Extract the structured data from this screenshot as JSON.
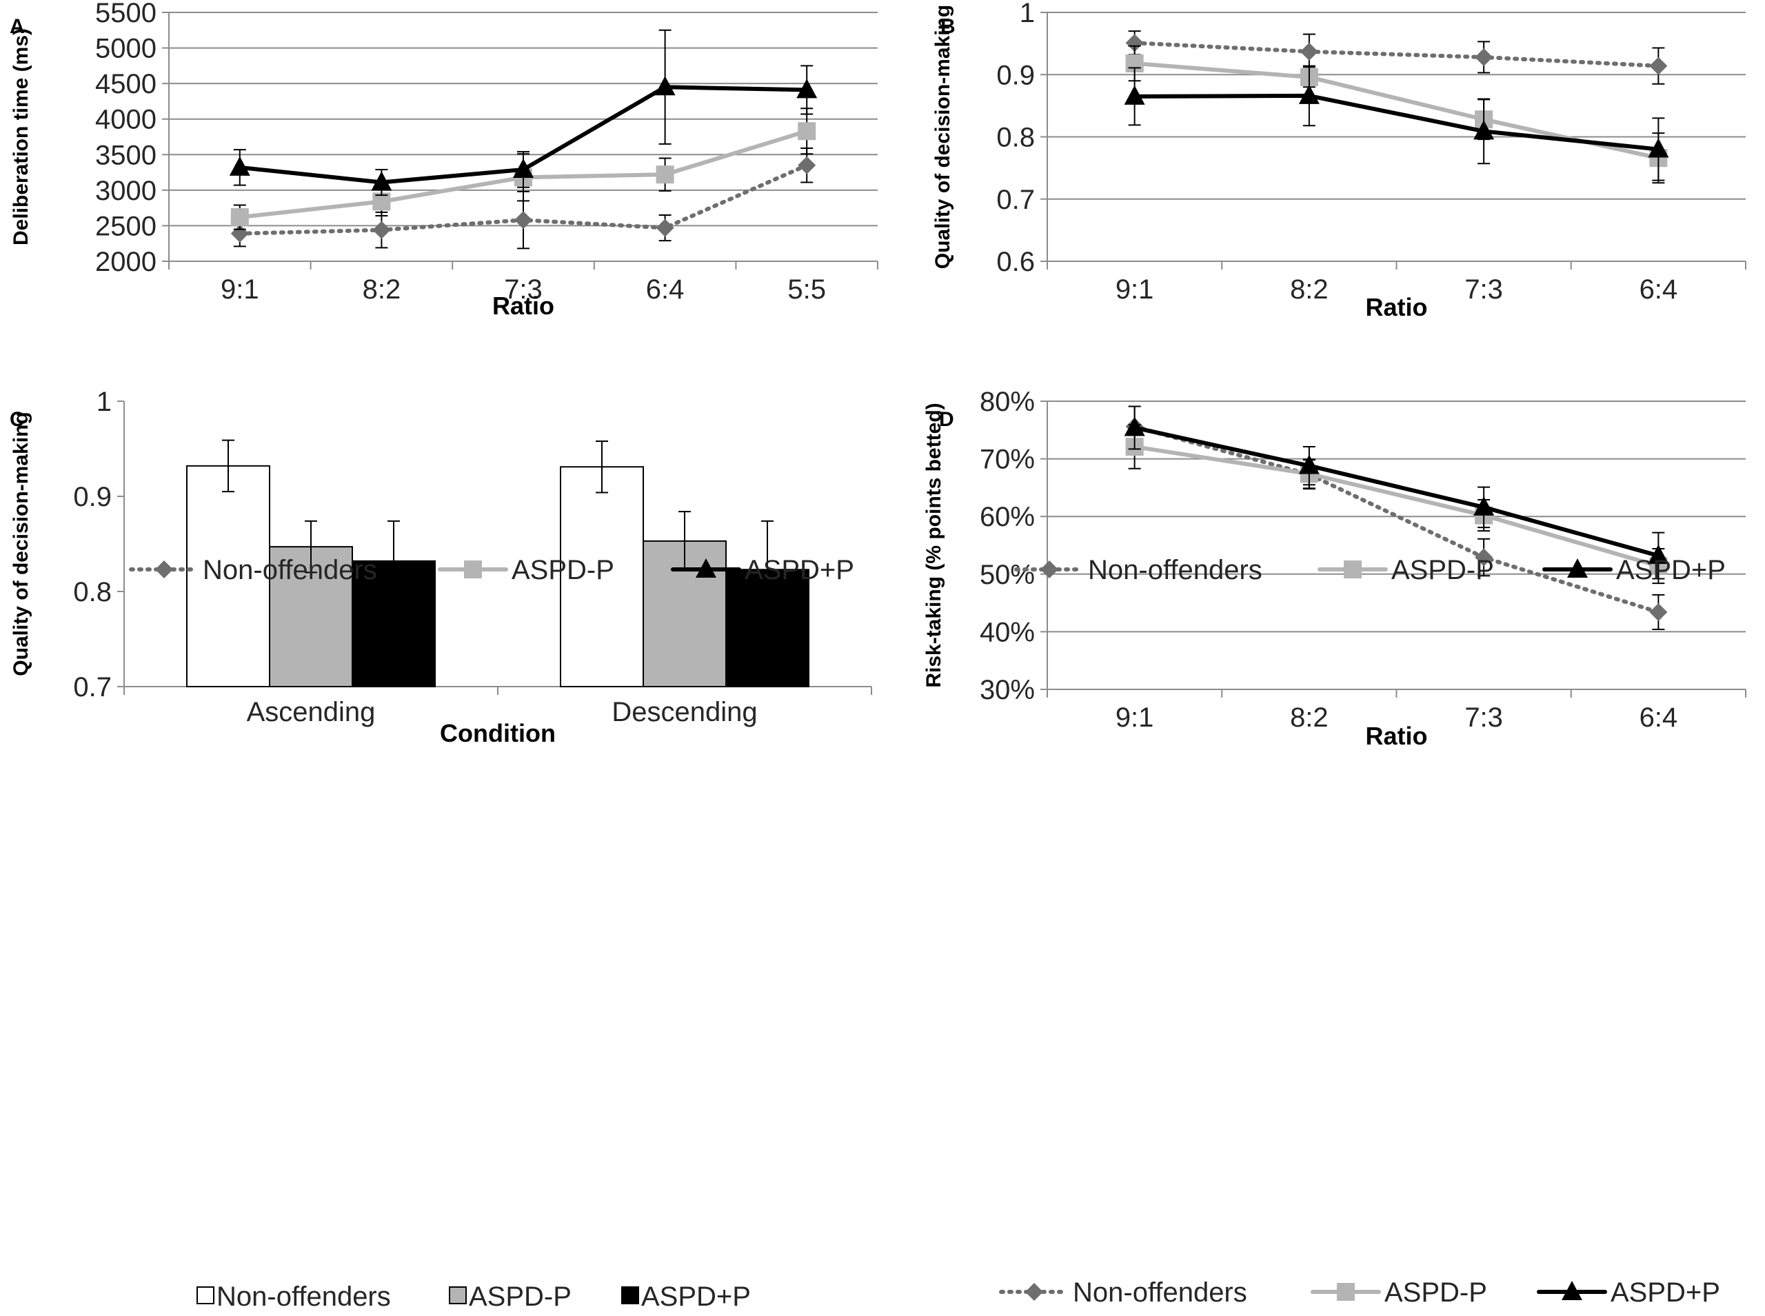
{
  "colors": {
    "non_offenders": "#6e6e6e",
    "aspd_minus_p": "#b4b4b4",
    "aspd_plus_p": "#000000",
    "grid": "#8c8c8c",
    "error_bar": "#000000"
  },
  "chart_data": [
    {
      "panel": "A",
      "type": "line",
      "xlabel": "Ratio",
      "ylabel": "Deliberation time (ms)",
      "categories": [
        "9:1",
        "8:2",
        "7:3",
        "6:4",
        "5:5"
      ],
      "ylim": [
        2000,
        5500
      ],
      "yticks": [
        2000,
        2500,
        3000,
        3500,
        4000,
        4500,
        5000,
        5500
      ],
      "ytick_labels": [
        "2000",
        "2500",
        "3000",
        "3500",
        "4000",
        "4500",
        "5000",
        "5500"
      ],
      "grid": true,
      "legend_position": "bottom",
      "series": [
        {
          "name": "Non-offenders",
          "marker": "diamond",
          "style": "dotted",
          "color": "#6e6e6e",
          "values": [
            2390,
            2440,
            2580,
            2470,
            3350
          ],
          "errors": [
            180,
            250,
            400,
            180,
            240
          ]
        },
        {
          "name": "ASPD-P",
          "marker": "square",
          "style": "solid",
          "color": "#b4b4b4",
          "values": [
            2620,
            2840,
            3180,
            3220,
            3830
          ],
          "errors": [
            170,
            200,
            330,
            230,
            320
          ]
        },
        {
          "name": "ASPD+P",
          "marker": "triangle",
          "style": "solid",
          "color": "#000000",
          "values": [
            3320,
            3110,
            3290,
            4450,
            4410
          ],
          "errors": [
            250,
            180,
            250,
            800,
            340
          ]
        }
      ]
    },
    {
      "panel": "B",
      "type": "line",
      "xlabel": "Ratio",
      "ylabel": "Quality of decision-making",
      "categories": [
        "9:1",
        "8:2",
        "7:3",
        "6:4"
      ],
      "ylim": [
        0.6,
        1.0
      ],
      "yticks": [
        0.6,
        0.7,
        0.8,
        0.9,
        1.0
      ],
      "ytick_labels": [
        "0.6",
        "0.7",
        "0.8",
        "0.9",
        "1"
      ],
      "grid": true,
      "legend_position": "bottom",
      "series": [
        {
          "name": "Non-offenders",
          "marker": "diamond",
          "style": "dotted",
          "color": "#6e6e6e",
          "values": [
            0.951,
            0.937,
            0.928,
            0.914
          ],
          "errors": [
            0.019,
            0.028,
            0.025,
            0.029
          ]
        },
        {
          "name": "ASPD-P",
          "marker": "square",
          "style": "solid",
          "color": "#b4b4b4",
          "values": [
            0.918,
            0.896,
            0.828,
            0.766
          ],
          "errors": [
            0.028,
            0.016,
            0.032,
            0.04
          ]
        },
        {
          "name": "ASPD+P",
          "marker": "triangle",
          "style": "solid",
          "color": "#000000",
          "values": [
            0.865,
            0.866,
            0.809,
            0.78
          ],
          "errors": [
            0.046,
            0.048,
            0.052,
            0.05
          ]
        }
      ]
    },
    {
      "panel": "C",
      "type": "bar",
      "xlabel": "Condition",
      "ylabel": "Quality of decision-making",
      "categories": [
        "Ascending",
        "Descending"
      ],
      "ylim": [
        0.7,
        1.0
      ],
      "yticks": [
        0.7,
        0.8,
        0.9,
        1.0
      ],
      "ytick_labels": [
        "0.7",
        "0.8",
        "0.9",
        "1"
      ],
      "grid": false,
      "legend_position": "bottom",
      "series": [
        {
          "name": "Non-offenders",
          "fill": "#ffffff",
          "values": [
            0.932,
            0.931
          ],
          "errors": [
            0.027,
            0.027
          ]
        },
        {
          "name": "ASPD-P",
          "fill": "#b4b4b4",
          "values": [
            0.847,
            0.853
          ],
          "errors": [
            0.027,
            0.031
          ]
        },
        {
          "name": "ASPD+P",
          "fill": "#000000",
          "values": [
            0.832,
            0.823
          ],
          "errors": [
            0.042,
            0.051
          ]
        }
      ]
    },
    {
      "panel": "D",
      "type": "line",
      "xlabel": "Ratio",
      "ylabel": "Risk-taking (% points betted)",
      "categories": [
        "9:1",
        "8:2",
        "7:3",
        "6:4"
      ],
      "ylim": [
        30,
        80
      ],
      "yticks": [
        30,
        40,
        50,
        60,
        70,
        80
      ],
      "ytick_labels": [
        "30%",
        "40%",
        "50%",
        "60%",
        "70%",
        "80%"
      ],
      "grid": true,
      "legend_position": "bottom",
      "series": [
        {
          "name": "Non-offenders",
          "marker": "diamond",
          "style": "dotted",
          "color": "#6e6e6e",
          "values": [
            75.6,
            67.3,
            52.9,
            43.4
          ],
          "errors": [
            3.5,
            2.5,
            3.2,
            3.0
          ]
        },
        {
          "name": "ASPD-P",
          "marker": "square",
          "style": "solid",
          "color": "#b4b4b4",
          "values": [
            72.1,
            67.4,
            60.2,
            51.4
          ],
          "errors": [
            3.8,
            2.5,
            2.7,
            3.0
          ]
        },
        {
          "name": "ASPD+P",
          "marker": "triangle",
          "style": "solid",
          "color": "#000000",
          "values": [
            75.4,
            68.8,
            61.6,
            53.2
          ],
          "errors": [
            3.7,
            3.3,
            3.5,
            4.0
          ]
        }
      ]
    }
  ]
}
